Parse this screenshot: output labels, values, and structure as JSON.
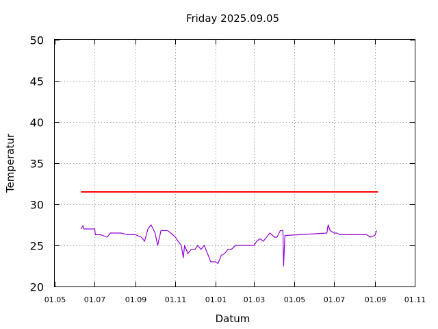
{
  "chart_data": {
    "type": "line",
    "title": "Friday 2025.09.05",
    "xlabel": "Datum",
    "ylabel": "Temperatur",
    "ylim": [
      20,
      50
    ],
    "yticks": [
      20,
      25,
      30,
      35,
      40,
      45,
      50
    ],
    "xlim": [
      "2024-05-01",
      "2025-11-01"
    ],
    "xticks": [
      {
        "date": "2024-05-01",
        "label": "01.05"
      },
      {
        "date": "2024-07-01",
        "label": "01.07"
      },
      {
        "date": "2024-09-01",
        "label": "01.09"
      },
      {
        "date": "2024-11-01",
        "label": "01.11"
      },
      {
        "date": "2025-01-01",
        "label": "01.01"
      },
      {
        "date": "2025-03-01",
        "label": "01.03"
      },
      {
        "date": "2025-05-01",
        "label": "01.05"
      },
      {
        "date": "2025-07-01",
        "label": "01.07"
      },
      {
        "date": "2025-09-01",
        "label": "01.09"
      },
      {
        "date": "2025-11-01",
        "label": "01.11"
      }
    ],
    "grid": true,
    "series": [
      {
        "color": "#ff0000",
        "x": [
          "2024-06-10",
          "2025-09-06"
        ],
        "y": [
          31.5,
          31.5
        ]
      },
      {
        "color": "#9400d3",
        "x": [
          "2024-06-10",
          "2024-06-13",
          "2024-06-14",
          "2024-06-20",
          "2024-07-01",
          "2024-07-02",
          "2024-07-05",
          "2024-07-10",
          "2024-07-20",
          "2024-07-25",
          "2024-08-01",
          "2024-08-10",
          "2024-08-20",
          "2024-09-01",
          "2024-09-10",
          "2024-09-15",
          "2024-09-20",
          "2024-09-25",
          "2024-10-01",
          "2024-10-05",
          "2024-10-10",
          "2024-10-15",
          "2024-10-20",
          "2024-10-25",
          "2024-11-01",
          "2024-11-05",
          "2024-11-10",
          "2024-11-13",
          "2024-11-15",
          "2024-11-20",
          "2024-11-25",
          "2024-12-01",
          "2024-12-05",
          "2024-12-10",
          "2024-12-15",
          "2024-12-20",
          "2024-12-25",
          "2024-12-28",
          "2025-01-01",
          "2025-01-05",
          "2025-01-10",
          "2025-01-15",
          "2025-01-20",
          "2025-01-25",
          "2025-02-01",
          "2025-02-10",
          "2025-02-20",
          "2025-03-01",
          "2025-03-05",
          "2025-03-10",
          "2025-03-15",
          "2025-03-20",
          "2025-03-25",
          "2025-04-01",
          "2025-04-05",
          "2025-04-10",
          "2025-04-14",
          "2025-04-15",
          "2025-04-17",
          "2025-06-20",
          "2025-06-22",
          "2025-06-25",
          "2025-07-01",
          "2025-07-05",
          "2025-07-10",
          "2025-07-20",
          "2025-08-01",
          "2025-08-10",
          "2025-08-20",
          "2025-08-25",
          "2025-09-01",
          "2025-09-04"
        ],
        "y": [
          27.0,
          27.4,
          27.0,
          27.0,
          27.0,
          26.3,
          26.3,
          26.3,
          26.0,
          26.5,
          26.5,
          26.5,
          26.3,
          26.3,
          26.0,
          25.5,
          27.0,
          27.5,
          26.5,
          25.0,
          26.8,
          26.8,
          26.8,
          26.5,
          26.0,
          25.5,
          25.0,
          23.5,
          25.0,
          24.0,
          24.5,
          24.5,
          25.0,
          24.5,
          25.0,
          24.0,
          23.0,
          23.0,
          23.0,
          22.8,
          23.8,
          24.0,
          24.5,
          24.5,
          25.0,
          25.0,
          25.0,
          25.0,
          25.5,
          25.8,
          25.5,
          26.0,
          26.5,
          26.0,
          26.0,
          26.8,
          26.8,
          22.5,
          26.2,
          26.5,
          27.5,
          26.8,
          26.5,
          26.5,
          26.3,
          26.3,
          26.3,
          26.3,
          26.3,
          26.0,
          26.2,
          26.8
        ]
      }
    ]
  },
  "colors": {
    "limit_line": "#ff0000",
    "temperature_line": "#9400d3",
    "grid": "#a0a0a0"
  }
}
